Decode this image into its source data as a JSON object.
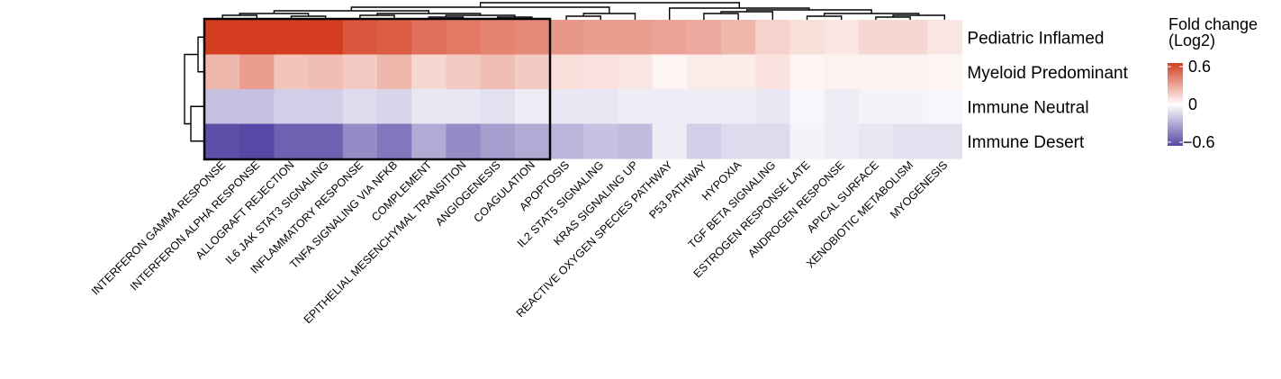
{
  "chart_data": {
    "type": "heatmap",
    "rows": [
      "Pediatric Inflamed",
      "Myeloid Predominant",
      "Immune Neutral",
      "Immune Desert"
    ],
    "columns": [
      "INTERFERON GAMMA RESPONSE",
      "INTERFERON ALPHA RESPONSE",
      "ALLOGRAFT REJECTION",
      "IL6 JAK STAT3 SIGNALING",
      "INFLAMMATORY RESPONSE",
      "TNFA SIGNALING VIA NFKB",
      "COMPLEMENT",
      "EPITHELIAL MESENCHYMAL TRANSITION",
      "ANGIOGENESIS",
      "COAGULATION",
      "APOPTOSIS",
      "IL2 STAT5 SIGNALING",
      "KRAS SIGNALING UP",
      "REACTIVE OXYGEN SPECIES PATHWAY",
      "P53 PATHWAY",
      "HYPOXIA",
      "TGF BETA SIGNALING",
      "ESTROGEN RESPONSE LATE",
      "ANDROGEN RESPONSE",
      "APICAL SURFACE",
      "XENOBIOTIC METABOLISM",
      "MYOGENESIS"
    ],
    "values": [
      [
        0.62,
        0.62,
        0.62,
        0.6,
        0.52,
        0.5,
        0.44,
        0.41,
        0.38,
        0.36,
        0.32,
        0.3,
        0.3,
        0.28,
        0.26,
        0.22,
        0.14,
        0.1,
        0.08,
        0.12,
        0.12,
        0.08
      ],
      [
        0.22,
        0.3,
        0.18,
        0.2,
        0.16,
        0.22,
        0.12,
        0.16,
        0.2,
        0.16,
        0.1,
        0.09,
        0.08,
        0.03,
        0.06,
        0.06,
        0.09,
        0.03,
        0.04,
        0.04,
        0.04,
        0.03
      ],
      [
        -0.2,
        -0.2,
        -0.16,
        -0.16,
        -0.12,
        -0.14,
        -0.08,
        -0.08,
        -0.1,
        -0.06,
        -0.08,
        -0.08,
        -0.06,
        -0.06,
        -0.06,
        -0.06,
        -0.08,
        -0.03,
        -0.06,
        -0.04,
        -0.04,
        -0.03
      ],
      [
        -0.58,
        -0.6,
        -0.52,
        -0.52,
        -0.38,
        -0.45,
        -0.28,
        -0.38,
        -0.32,
        -0.28,
        -0.24,
        -0.2,
        -0.22,
        -0.06,
        -0.16,
        -0.12,
        -0.12,
        -0.04,
        -0.06,
        -0.08,
        -0.1,
        -0.1
      ]
    ],
    "legend": {
      "title_line1": "Fold change",
      "title_line2": "(Log2)",
      "max_label": "0.6",
      "mid_label": "0",
      "min_label": "−0.6"
    },
    "color_scale": {
      "low": "#5649a5",
      "mid": "#ffffff",
      "high": "#d43d1f",
      "min": -0.6,
      "max": 0.6
    },
    "highlight_box_columns": 10
  }
}
